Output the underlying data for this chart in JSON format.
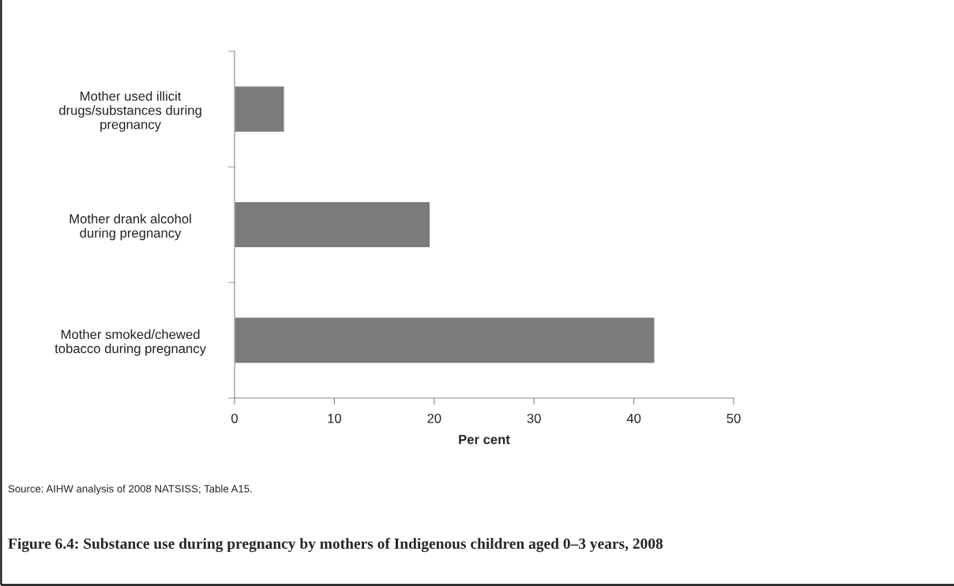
{
  "chart_data": {
    "type": "bar",
    "orientation": "horizontal",
    "title": "Figure 6.4: Substance use during pregnancy by mothers of Indigenous children aged 0–3 years, 2008",
    "categories": [
      "Mother used illicit\ndrugs/substances during\npregnancy",
      "Mother drank alcohol\nduring pregnancy",
      "Mother smoked/chewed\ntobacco during pregnancy"
    ],
    "values": [
      5.0,
      19.6,
      42.1
    ],
    "color": "#7b7b79",
    "xlabel": "Per cent",
    "xlim": [
      0,
      50
    ],
    "xticks": [
      0,
      10,
      20,
      30,
      40,
      50
    ],
    "grid": false,
    "annotations": [
      "Source: AIHW analysis of 2008 NATSISS; Table A15."
    ]
  }
}
